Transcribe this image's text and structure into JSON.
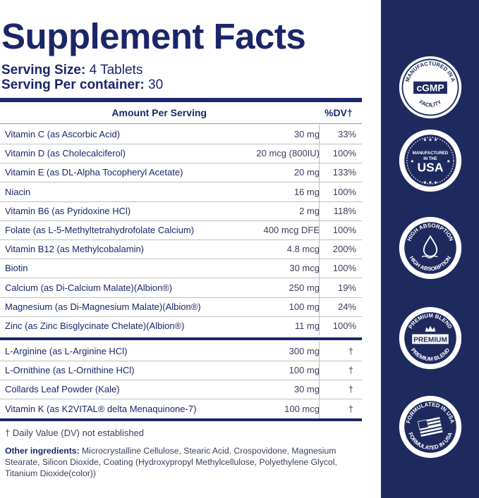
{
  "title": "Supplement Facts",
  "serving": {
    "size_label": "Serving Size:",
    "size_value": "4 Tablets",
    "per_container_label": "Serving Per container:",
    "per_container_value": "30"
  },
  "header": {
    "amount": "Amount Per Serving",
    "dv": "%DV†"
  },
  "rows": [
    {
      "name": "Vitamin C (as Ascorbic Acid)",
      "amount": "30 mg",
      "dv": "33%"
    },
    {
      "name": "Vitamin D (as Cholecalciferol)",
      "amount": "20 mcg (800IU)",
      "dv": "100%"
    },
    {
      "name": "Vitamin E (as DL-Alpha Tocopheryl Acetate)",
      "amount": "20 mg",
      "dv": "133%"
    },
    {
      "name": "Niacin",
      "amount": "16 mg",
      "dv": "100%"
    },
    {
      "name": "Vitamin B6 (as Pyridoxine HCl)",
      "amount": "2 mg",
      "dv": "118%"
    },
    {
      "name": "Folate (as L-5-Methyltetrahydrofolate Calcium)",
      "amount": "400 mcg DFE",
      "dv": "100%"
    },
    {
      "name": "Vitamin B12 (as Methylcobalamin)",
      "amount": "4.8 mcg",
      "dv": "200%"
    },
    {
      "name": "Biotin",
      "amount": "30 mcg",
      "dv": "100%"
    },
    {
      "name": "Calcium (as Di-Calcium Malate)(Albion®)",
      "amount": "250 mg",
      "dv": "19%"
    },
    {
      "name": "Magnesium (as Di-Magnesium Malate)(Albion®)",
      "amount": "100 mg",
      "dv": "24%"
    },
    {
      "name": "Zinc (as Zinc Bisglycinate Chelate)(Albion®)",
      "amount": "11 mg",
      "dv": "100%"
    }
  ],
  "rows2": [
    {
      "name": "L-Arginine (as L-Arginine HCl)",
      "amount": "300 mg",
      "dv": "†"
    },
    {
      "name": "L-Ornithine (as L-Ornithine HCl)",
      "amount": "100 mg",
      "dv": "†"
    },
    {
      "name": "Collards Leaf Powder (Kale)",
      "amount": "30 mg",
      "dv": "†"
    },
    {
      "name": "Vitamin K (as K2VITAL® delta Menaquinone-7)",
      "amount": "100 mcg",
      "dv": "†"
    }
  ],
  "footnote": "† Daily Value (DV) not established",
  "other_ingredients": {
    "label": "Other ingredients:",
    "text": " Microcrystalline Cellulose, Stearic Acid, Crospovidone, Magnesium Stearate, Silicon Dioxide, Coating (Hydroxypropyl Methylcellulose, Polyethylene Glycol, Titanium Dioxide(color))"
  },
  "badges": {
    "cgmp": {
      "ring": "MANUFACTURED IN A",
      "center": "cGMP",
      "bottom": "FACILITY"
    },
    "usa": {
      "line1": "MANUFACTURED",
      "line2": "IN THE",
      "line3": "USA"
    },
    "absorption": {
      "top": "HIGH ABSORPTION",
      "bottom": "HIGH ABSORPTION"
    },
    "premium": {
      "top": "PREMIUM BLEND",
      "center": "PREMIUM",
      "bottom": "PREMIUM BLEND"
    },
    "formulated": {
      "top": "FORMULATED IN USA",
      "bottom": "FORMULATED IN USA"
    }
  },
  "colors": {
    "navy": "#1e2a5e",
    "text": "#1b2669",
    "body": "#3a3f5c"
  }
}
